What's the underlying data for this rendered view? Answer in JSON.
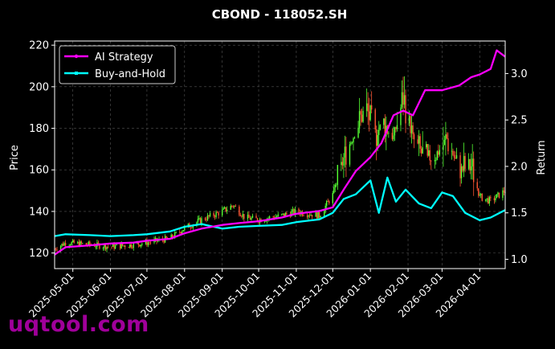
{
  "chart_data": {
    "type": "candlestick-line",
    "title": "CBOND - 118052.SH",
    "ylabel_left": "Price",
    "ylabel_right": "Return",
    "ylim_left": [
      112.5,
      222
    ],
    "ylim_right": [
      0.9,
      3.35
    ],
    "y_ticks_left": [
      120,
      140,
      160,
      180,
      200,
      220
    ],
    "y_ticks_right": [
      1.0,
      1.5,
      2.0,
      2.5,
      3.0
    ],
    "x_range": [
      "2025-04-16",
      "2026-04-22"
    ],
    "x_tick_labels": [
      "2025-05-01",
      "2025-06-01",
      "2025-07-01",
      "2025-08-01",
      "2025-09-01",
      "2025-10-01",
      "2025-11-01",
      "2025-12-01",
      "2026-01-01",
      "2026-02-01",
      "2026-03-01",
      "2026-04-01"
    ],
    "grid": true,
    "legend_position": "top-left",
    "colors": {
      "ai_strategy": "#ff00ff",
      "buy_and_hold": "#00ffff",
      "candle_up": "#55ff33",
      "candle_down": "#ff5533",
      "background": "#000000"
    },
    "series": [
      {
        "name": "AI Strategy",
        "axis": "right",
        "x": [
          "2025-04-16",
          "2025-04-25",
          "2025-05-15",
          "2025-06-01",
          "2025-06-20",
          "2025-07-01",
          "2025-07-20",
          "2025-08-01",
          "2025-08-15",
          "2025-09-01",
          "2025-09-15",
          "2025-10-01",
          "2025-10-20",
          "2025-11-01",
          "2025-11-20",
          "2025-12-01",
          "2025-12-10",
          "2025-12-20",
          "2026-01-01",
          "2026-01-10",
          "2026-01-20",
          "2026-01-28",
          "2026-02-05",
          "2026-02-15",
          "2026-03-01",
          "2026-03-15",
          "2026-03-25",
          "2026-04-01",
          "2026-04-10",
          "2026-04-15",
          "2026-04-22"
        ],
        "values": [
          1.05,
          1.13,
          1.15,
          1.17,
          1.18,
          1.2,
          1.22,
          1.28,
          1.33,
          1.37,
          1.39,
          1.41,
          1.45,
          1.49,
          1.52,
          1.56,
          1.75,
          1.95,
          2.1,
          2.25,
          2.55,
          2.6,
          2.55,
          2.82,
          2.82,
          2.87,
          2.96,
          2.99,
          3.05,
          3.25,
          3.18
        ]
      },
      {
        "name": "Buy-and-Hold",
        "axis": "right",
        "x": [
          "2025-04-16",
          "2025-04-25",
          "2025-05-15",
          "2025-06-01",
          "2025-06-20",
          "2025-07-01",
          "2025-07-20",
          "2025-08-01",
          "2025-08-15",
          "2025-09-01",
          "2025-09-15",
          "2025-10-01",
          "2025-10-20",
          "2025-11-01",
          "2025-11-20",
          "2025-12-01",
          "2025-12-10",
          "2025-12-20",
          "2026-01-01",
          "2026-01-08",
          "2026-01-15",
          "2026-01-22",
          "2026-01-30",
          "2026-02-10",
          "2026-02-20",
          "2026-03-01",
          "2026-03-10",
          "2026-03-20",
          "2026-04-01",
          "2026-04-10",
          "2026-04-22"
        ],
        "values": [
          1.25,
          1.27,
          1.26,
          1.25,
          1.26,
          1.27,
          1.3,
          1.35,
          1.38,
          1.33,
          1.35,
          1.36,
          1.37,
          1.4,
          1.43,
          1.5,
          1.65,
          1.7,
          1.85,
          1.5,
          1.88,
          1.62,
          1.75,
          1.6,
          1.55,
          1.72,
          1.68,
          1.5,
          1.42,
          1.45,
          1.53
        ]
      },
      {
        "name": "Price",
        "axis": "left",
        "x": [
          "2025-04-16",
          "2025-04-25",
          "2025-05-15",
          "2025-06-01",
          "2025-06-20",
          "2025-07-01",
          "2025-07-20",
          "2025-08-01",
          "2025-08-15",
          "2025-09-01",
          "2025-09-10",
          "2025-09-20",
          "2025-10-01",
          "2025-10-20",
          "2025-11-01",
          "2025-11-20",
          "2025-12-01",
          "2025-12-10",
          "2025-12-20",
          "2025-12-28",
          "2026-01-05",
          "2026-01-12",
          "2026-01-20",
          "2026-01-28",
          "2026-02-05",
          "2026-02-15",
          "2026-02-25",
          "2026-03-05",
          "2026-03-15",
          "2026-03-25",
          "2026-04-01",
          "2026-04-10",
          "2026-04-22"
        ],
        "values": [
          122,
          125,
          124,
          123,
          124,
          125,
          127,
          132,
          136,
          140,
          143,
          137,
          136,
          138,
          140,
          138,
          148,
          165,
          180,
          190,
          178,
          182,
          175,
          195,
          175,
          165,
          168,
          175,
          160,
          162,
          147,
          145,
          150
        ]
      }
    ]
  },
  "watermark": "uqtool.com"
}
